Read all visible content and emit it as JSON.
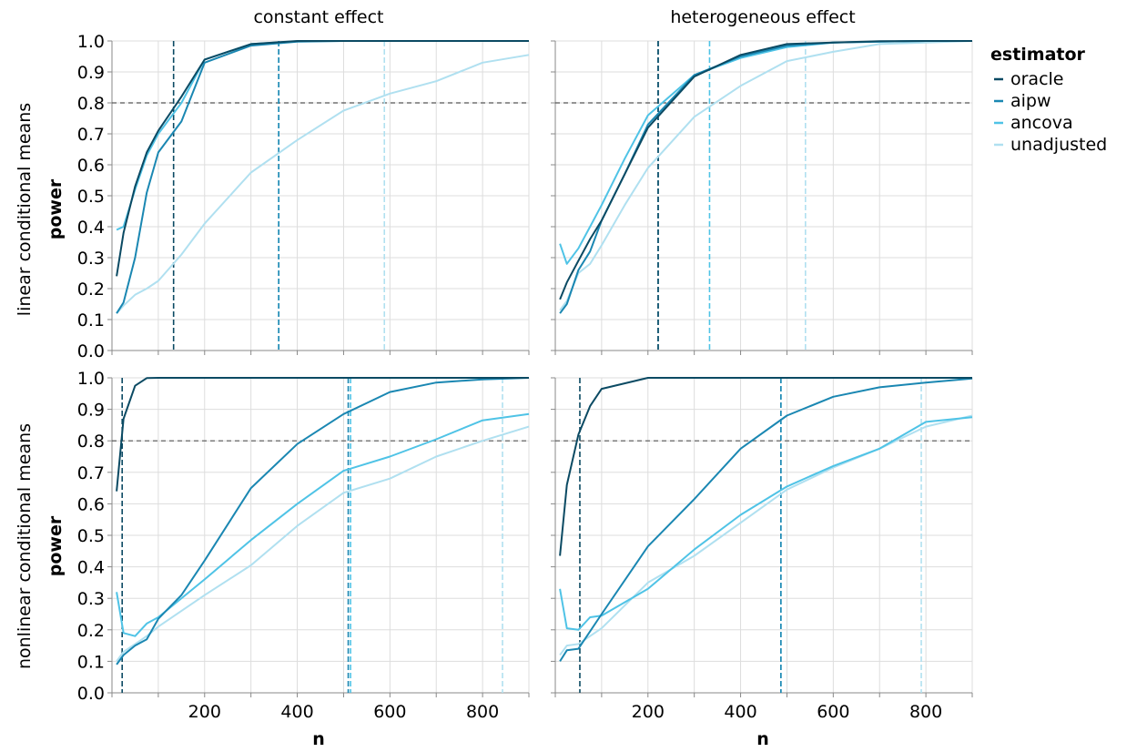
{
  "legend": {
    "title": "estimator",
    "items": [
      {
        "label": "oracle",
        "color": "#0b4a63"
      },
      {
        "label": "aipw",
        "color": "#1a87b2"
      },
      {
        "label": "ancova",
        "color": "#4fc3e6"
      },
      {
        "label": "unadjusted",
        "color": "#b0e0f0"
      }
    ]
  },
  "column_titles": [
    "constant effect",
    "heterogeneous effect"
  ],
  "row_titles": [
    "linear conditional means",
    "nonlinear conditional means"
  ],
  "y_axis_title": "power",
  "x_axis_title": "n",
  "chart_data": [
    {
      "type": "line",
      "panel": "linear conditional means / constant effect",
      "xlabel": "n",
      "ylabel": "power",
      "xlim": [
        0,
        900
      ],
      "ylim": [
        0,
        1
      ],
      "xticks": [
        200,
        400,
        600,
        800
      ],
      "yticks": [
        "0.0",
        "0.1",
        "0.2",
        "0.3",
        "0.4",
        "0.5",
        "0.6",
        "0.7",
        "0.8",
        "0.9",
        "1.0"
      ],
      "hline": 0.8,
      "vlines": {
        "oracle": 133,
        "aipw": 360,
        "ancova": 360,
        "unadjusted": 588
      },
      "series": [
        {
          "name": "oracle",
          "points": [
            [
              10,
              0.24
            ],
            [
              25,
              0.38
            ],
            [
              50,
              0.53
            ],
            [
              75,
              0.64
            ],
            [
              100,
              0.71
            ],
            [
              150,
              0.82
            ],
            [
              200,
              0.94
            ],
            [
              300,
              0.99
            ],
            [
              400,
              1.0
            ],
            [
              500,
              1.0
            ],
            [
              600,
              1.0
            ],
            [
              700,
              1.0
            ],
            [
              800,
              1.0
            ],
            [
              900,
              1.0
            ]
          ]
        },
        {
          "name": "aipw",
          "points": [
            [
              10,
              0.12
            ],
            [
              25,
              0.155
            ],
            [
              50,
              0.3
            ],
            [
              75,
              0.51
            ],
            [
              100,
              0.64
            ],
            [
              150,
              0.74
            ],
            [
              200,
              0.93
            ],
            [
              300,
              0.985
            ],
            [
              400,
              0.998
            ],
            [
              500,
              1.0
            ],
            [
              600,
              1.0
            ],
            [
              700,
              1.0
            ],
            [
              800,
              1.0
            ],
            [
              900,
              1.0
            ]
          ]
        },
        {
          "name": "ancova",
          "points": [
            [
              10,
              0.39
            ],
            [
              25,
              0.4
            ],
            [
              50,
              0.52
            ],
            [
              75,
              0.63
            ],
            [
              100,
              0.7
            ],
            [
              150,
              0.8
            ],
            [
              200,
              0.94
            ],
            [
              300,
              0.99
            ],
            [
              400,
              0.999
            ],
            [
              500,
              1.0
            ],
            [
              600,
              1.0
            ],
            [
              700,
              1.0
            ],
            [
              800,
              1.0
            ],
            [
              900,
              1.0
            ]
          ]
        },
        {
          "name": "unadjusted",
          "points": [
            [
              10,
              0.12
            ],
            [
              25,
              0.145
            ],
            [
              50,
              0.18
            ],
            [
              75,
              0.2
            ],
            [
              100,
              0.225
            ],
            [
              150,
              0.31
            ],
            [
              200,
              0.41
            ],
            [
              300,
              0.575
            ],
            [
              400,
              0.68
            ],
            [
              500,
              0.775
            ],
            [
              600,
              0.83
            ],
            [
              700,
              0.87
            ],
            [
              800,
              0.93
            ],
            [
              900,
              0.955
            ]
          ]
        }
      ]
    },
    {
      "type": "line",
      "panel": "linear conditional means / heterogeneous effect",
      "xlabel": "n",
      "ylabel": "power",
      "xlim": [
        0,
        900
      ],
      "ylim": [
        0,
        1
      ],
      "xticks": [
        200,
        400,
        600,
        800
      ],
      "yticks": [
        "0.0",
        "0.1",
        "0.2",
        "0.3",
        "0.4",
        "0.5",
        "0.6",
        "0.7",
        "0.8",
        "0.9",
        "1.0"
      ],
      "hline": 0.8,
      "vlines": {
        "oracle": 222,
        "aipw": 222,
        "ancova": 333,
        "unadjusted": 540
      },
      "series": [
        {
          "name": "oracle",
          "points": [
            [
              10,
              0.165
            ],
            [
              25,
              0.22
            ],
            [
              50,
              0.29
            ],
            [
              75,
              0.36
            ],
            [
              100,
              0.42
            ],
            [
              150,
              0.57
            ],
            [
              200,
              0.72
            ],
            [
              300,
              0.885
            ],
            [
              400,
              0.955
            ],
            [
              500,
              0.99
            ],
            [
              600,
              0.995
            ],
            [
              700,
              0.999
            ],
            [
              800,
              1.0
            ],
            [
              900,
              1.0
            ]
          ]
        },
        {
          "name": "aipw",
          "points": [
            [
              10,
              0.12
            ],
            [
              25,
              0.15
            ],
            [
              50,
              0.26
            ],
            [
              75,
              0.32
            ],
            [
              100,
              0.42
            ],
            [
              150,
              0.57
            ],
            [
              200,
              0.73
            ],
            [
              300,
              0.89
            ],
            [
              400,
              0.95
            ],
            [
              500,
              0.985
            ],
            [
              600,
              0.995
            ],
            [
              700,
              0.998
            ],
            [
              800,
              1.0
            ],
            [
              900,
              1.0
            ]
          ]
        },
        {
          "name": "ancova",
          "points": [
            [
              10,
              0.345
            ],
            [
              25,
              0.28
            ],
            [
              50,
              0.33
            ],
            [
              75,
              0.4
            ],
            [
              100,
              0.47
            ],
            [
              150,
              0.62
            ],
            [
              200,
              0.76
            ],
            [
              300,
              0.89
            ],
            [
              400,
              0.945
            ],
            [
              500,
              0.98
            ],
            [
              600,
              0.995
            ],
            [
              700,
              0.998
            ],
            [
              800,
              1.0
            ],
            [
              900,
              1.0
            ]
          ]
        },
        {
          "name": "unadjusted",
          "points": [
            [
              10,
              0.13
            ],
            [
              25,
              0.16
            ],
            [
              50,
              0.25
            ],
            [
              75,
              0.28
            ],
            [
              100,
              0.34
            ],
            [
              150,
              0.47
            ],
            [
              200,
              0.59
            ],
            [
              300,
              0.755
            ],
            [
              400,
              0.855
            ],
            [
              500,
              0.935
            ],
            [
              600,
              0.965
            ],
            [
              700,
              0.99
            ],
            [
              800,
              0.995
            ],
            [
              900,
              1.0
            ]
          ]
        }
      ]
    },
    {
      "type": "line",
      "panel": "nonlinear conditional means / constant effect",
      "xlabel": "n",
      "ylabel": "power",
      "xlim": [
        0,
        900
      ],
      "ylim": [
        0,
        1
      ],
      "xticks": [
        200,
        400,
        600,
        800
      ],
      "yticks": [
        "0.0",
        "0.1",
        "0.2",
        "0.3",
        "0.4",
        "0.5",
        "0.6",
        "0.7",
        "0.8",
        "0.9",
        "1.0"
      ],
      "hline": 0.8,
      "vlines": {
        "oracle": 22,
        "aipw": 510,
        "ancova": 515,
        "unadjusted": 843
      },
      "series": [
        {
          "name": "oracle",
          "points": [
            [
              10,
              0.64
            ],
            [
              25,
              0.87
            ],
            [
              50,
              0.975
            ],
            [
              75,
              0.999
            ],
            [
              100,
              1.0
            ],
            [
              200,
              1.0
            ],
            [
              300,
              1.0
            ],
            [
              400,
              1.0
            ],
            [
              500,
              1.0
            ],
            [
              600,
              1.0
            ],
            [
              700,
              1.0
            ],
            [
              800,
              1.0
            ],
            [
              900,
              1.0
            ]
          ]
        },
        {
          "name": "aipw",
          "points": [
            [
              10,
              0.09
            ],
            [
              25,
              0.12
            ],
            [
              50,
              0.15
            ],
            [
              75,
              0.17
            ],
            [
              100,
              0.235
            ],
            [
              150,
              0.31
            ],
            [
              200,
              0.42
            ],
            [
              300,
              0.65
            ],
            [
              400,
              0.79
            ],
            [
              500,
              0.885
            ],
            [
              600,
              0.955
            ],
            [
              700,
              0.985
            ],
            [
              800,
              0.995
            ],
            [
              900,
              1.0
            ]
          ]
        },
        {
          "name": "ancova",
          "points": [
            [
              10,
              0.32
            ],
            [
              25,
              0.19
            ],
            [
              50,
              0.18
            ],
            [
              75,
              0.22
            ],
            [
              100,
              0.24
            ],
            [
              200,
              0.36
            ],
            [
              300,
              0.485
            ],
            [
              400,
              0.6
            ],
            [
              500,
              0.705
            ],
            [
              600,
              0.75
            ],
            [
              700,
              0.805
            ],
            [
              800,
              0.865
            ],
            [
              900,
              0.885
            ]
          ]
        },
        {
          "name": "unadjusted",
          "points": [
            [
              10,
              0.1
            ],
            [
              25,
              0.13
            ],
            [
              50,
              0.155
            ],
            [
              75,
              0.18
            ],
            [
              100,
              0.21
            ],
            [
              200,
              0.31
            ],
            [
              300,
              0.405
            ],
            [
              400,
              0.53
            ],
            [
              500,
              0.635
            ],
            [
              600,
              0.68
            ],
            [
              700,
              0.75
            ],
            [
              800,
              0.8
            ],
            [
              900,
              0.845
            ]
          ]
        }
      ]
    },
    {
      "type": "line",
      "panel": "nonlinear conditional means / heterogeneous effect",
      "xlabel": "n",
      "ylabel": "power",
      "xlim": [
        0,
        900
      ],
      "ylim": [
        0,
        1
      ],
      "xticks": [
        200,
        400,
        600,
        800
      ],
      "yticks": [
        "0.0",
        "0.1",
        "0.2",
        "0.3",
        "0.4",
        "0.5",
        "0.6",
        "0.7",
        "0.8",
        "0.9",
        "1.0"
      ],
      "hline": 0.8,
      "vlines": {
        "oracle": 53,
        "aipw": 487,
        "ancova": 487,
        "unadjusted": 790
      },
      "series": [
        {
          "name": "oracle",
          "points": [
            [
              10,
              0.435
            ],
            [
              25,
              0.66
            ],
            [
              50,
              0.82
            ],
            [
              75,
              0.91
            ],
            [
              100,
              0.965
            ],
            [
              200,
              1.0
            ],
            [
              300,
              1.0
            ],
            [
              400,
              1.0
            ],
            [
              500,
              1.0
            ],
            [
              600,
              1.0
            ],
            [
              700,
              1.0
            ],
            [
              800,
              1.0
            ],
            [
              900,
              1.0
            ]
          ]
        },
        {
          "name": "aipw",
          "points": [
            [
              10,
              0.1
            ],
            [
              25,
              0.135
            ],
            [
              50,
              0.14
            ],
            [
              100,
              0.25
            ],
            [
              200,
              0.465
            ],
            [
              300,
              0.615
            ],
            [
              400,
              0.775
            ],
            [
              500,
              0.88
            ],
            [
              600,
              0.94
            ],
            [
              700,
              0.97
            ],
            [
              800,
              0.985
            ],
            [
              900,
              0.998
            ]
          ]
        },
        {
          "name": "ancova",
          "points": [
            [
              10,
              0.33
            ],
            [
              25,
              0.205
            ],
            [
              50,
              0.2
            ],
            [
              75,
              0.24
            ],
            [
              100,
              0.245
            ],
            [
              200,
              0.33
            ],
            [
              300,
              0.455
            ],
            [
              400,
              0.565
            ],
            [
              500,
              0.655
            ],
            [
              600,
              0.72
            ],
            [
              700,
              0.775
            ],
            [
              800,
              0.86
            ],
            [
              900,
              0.875
            ]
          ]
        },
        {
          "name": "unadjusted",
          "points": [
            [
              10,
              0.12
            ],
            [
              25,
              0.15
            ],
            [
              50,
              0.155
            ],
            [
              75,
              0.18
            ],
            [
              100,
              0.205
            ],
            [
              200,
              0.35
            ],
            [
              300,
              0.435
            ],
            [
              400,
              0.54
            ],
            [
              500,
              0.645
            ],
            [
              600,
              0.715
            ],
            [
              700,
              0.775
            ],
            [
              800,
              0.845
            ],
            [
              900,
              0.88
            ]
          ]
        }
      ]
    }
  ]
}
